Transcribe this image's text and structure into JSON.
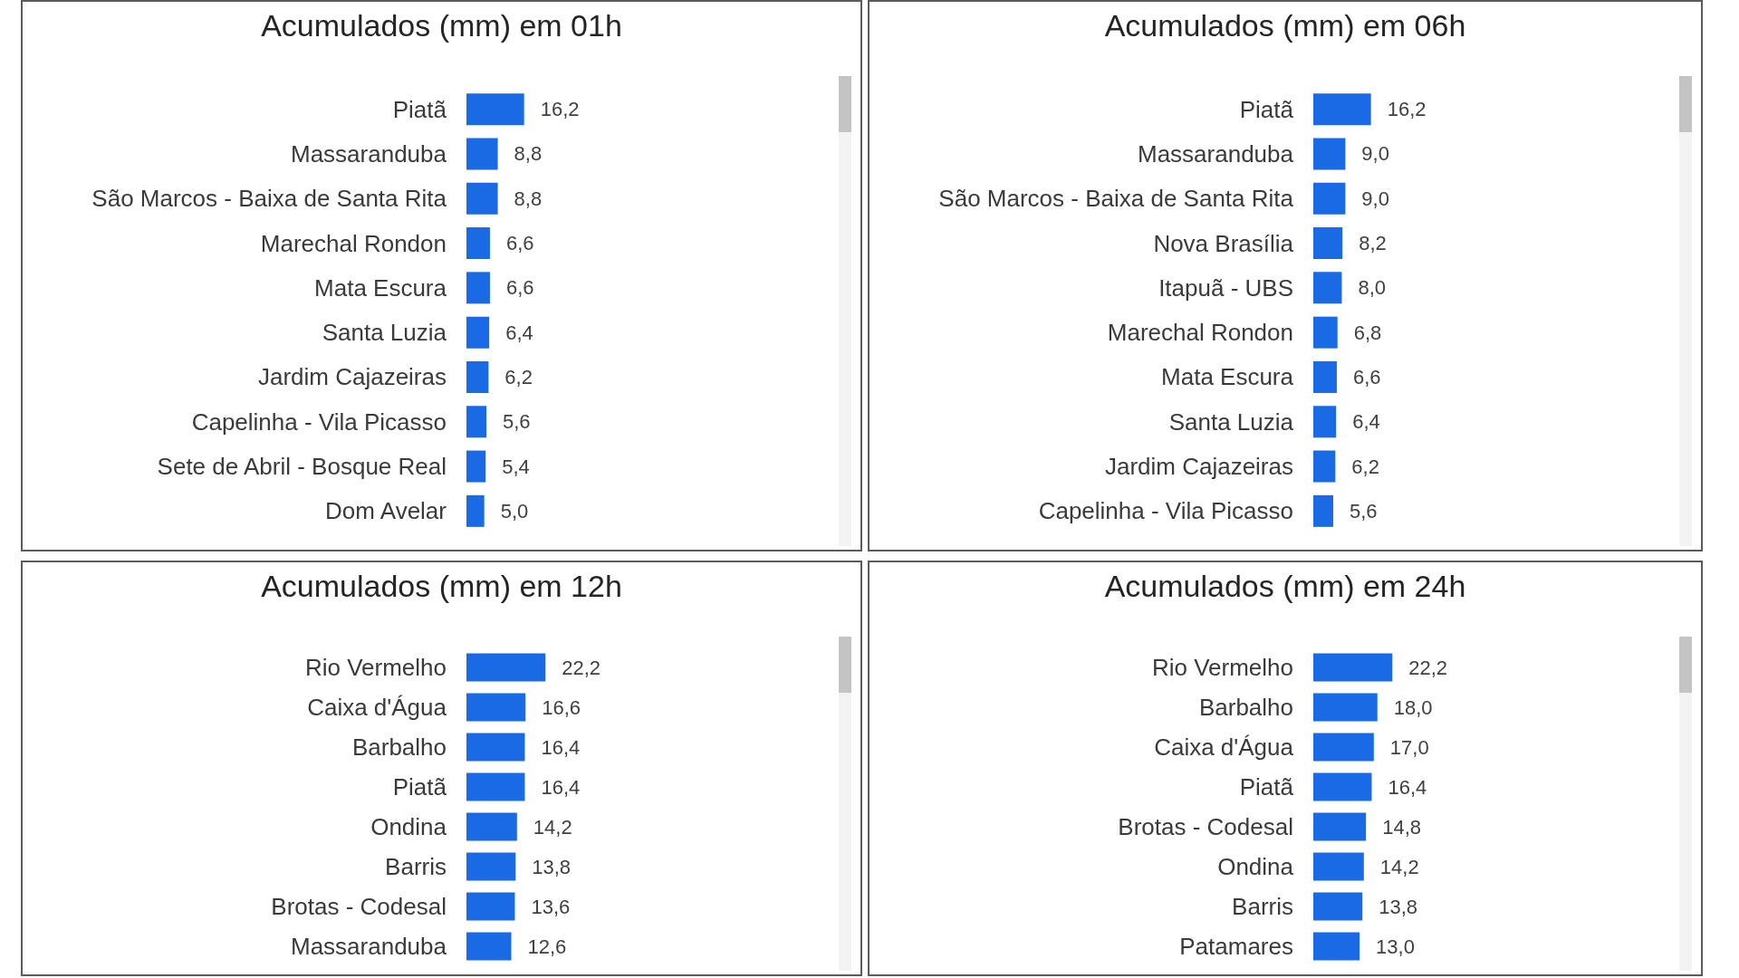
{
  "chart_data": [
    {
      "type": "bar",
      "orientation": "horizontal",
      "title": "Acumulados (mm) em 01h",
      "categories": [
        "Piatã",
        "Massaranduba",
        "São Marcos - Baixa de Santa Rita",
        "Marechal Rondon",
        "Mata Escura",
        "Santa Luzia",
        "Jardim Cajazeiras",
        "Capelinha - Vila Picasso",
        "Sete de Abril - Bosque Real",
        "Dom Avelar"
      ],
      "values": [
        16.2,
        8.8,
        8.8,
        6.6,
        6.6,
        6.4,
        6.2,
        5.6,
        5.4,
        5.0
      ],
      "value_labels": [
        "16,2",
        "8,8",
        "8,8",
        "6,6",
        "6,6",
        "6,4",
        "6,2",
        "5,6",
        "5,4",
        "5,0"
      ],
      "color": "#1a6ae6",
      "tick_labels": "y"
    },
    {
      "type": "bar",
      "orientation": "horizontal",
      "title": "Acumulados (mm) em 06h",
      "categories": [
        "Piatã",
        "Massaranduba",
        "São Marcos - Baixa de Santa Rita",
        "Nova Brasília",
        "Itapuã - UBS",
        "Marechal Rondon",
        "Mata Escura",
        "Santa Luzia",
        "Jardim Cajazeiras",
        "Capelinha - Vila Picasso"
      ],
      "values": [
        16.2,
        9.0,
        9.0,
        8.2,
        8.0,
        6.8,
        6.6,
        6.4,
        6.2,
        5.6
      ],
      "value_labels": [
        "16,2",
        "9,0",
        "9,0",
        "8,2",
        "8,0",
        "6,8",
        "6,6",
        "6,4",
        "6,2",
        "5,6"
      ],
      "color": "#1a6ae6",
      "tick_labels": "y"
    },
    {
      "type": "bar",
      "orientation": "horizontal",
      "title": "Acumulados (mm) em 12h",
      "categories": [
        "Rio Vermelho",
        "Caixa d'Água",
        "Barbalho",
        "Piatã",
        "Ondina",
        "Barris",
        "Brotas - Codesal",
        "Massaranduba"
      ],
      "values": [
        22.2,
        16.6,
        16.4,
        16.4,
        14.2,
        13.8,
        13.6,
        12.6
      ],
      "value_labels": [
        "22,2",
        "16,6",
        "16,4",
        "16,4",
        "14,2",
        "13,8",
        "13,6",
        "12,6"
      ],
      "color": "#1a6ae6",
      "tick_labels": "y"
    },
    {
      "type": "bar",
      "orientation": "horizontal",
      "title": "Acumulados (mm) em 24h",
      "categories": [
        "Rio Vermelho",
        "Barbalho",
        "Caixa d'Água",
        "Piatã",
        "Brotas - Codesal",
        "Ondina",
        "Barris",
        "Patamares"
      ],
      "values": [
        22.2,
        18.0,
        17.0,
        16.4,
        14.8,
        14.2,
        13.8,
        13.0
      ],
      "value_labels": [
        "22,2",
        "18,0",
        "17,0",
        "16,4",
        "14,8",
        "14,2",
        "13,8",
        "13,0"
      ],
      "color": "#1a6ae6",
      "tick_labels": "y"
    }
  ]
}
